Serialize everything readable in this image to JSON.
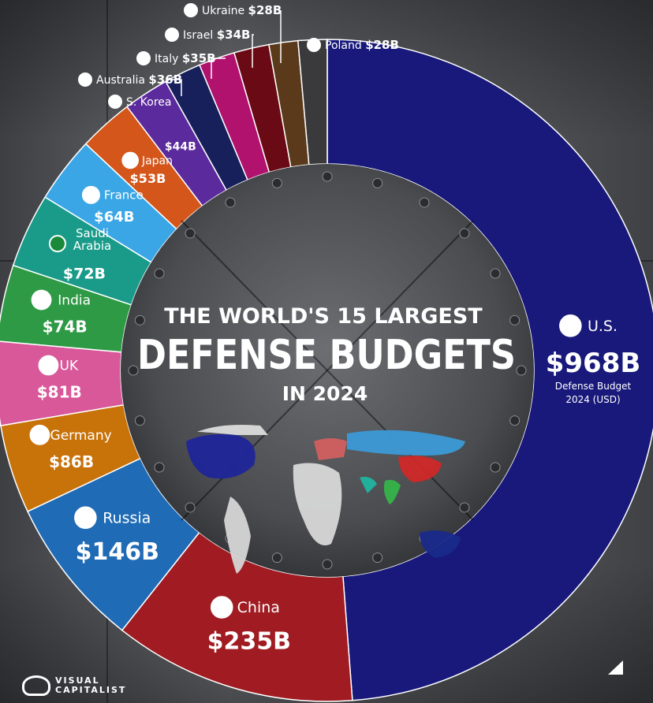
{
  "chart_data": {
    "type": "pie",
    "title": "THE WORLD'S 15 LARGEST",
    "subtitle": "DEFENSE BUDGETS",
    "subtitle2": "IN 2024",
    "unit_note": "Defense Budget",
    "unit_note2": "2024 (USD)",
    "slices": [
      {
        "country": "U.S.",
        "label": "$968B",
        "value": 968,
        "color": "#18197a"
      },
      {
        "country": "China",
        "label": "$235B",
        "value": 235,
        "color": "#a01c22"
      },
      {
        "country": "Russia",
        "label": "$146B",
        "value": 146,
        "color": "#1f6bb5"
      },
      {
        "country": "Germany",
        "label": "$86B",
        "value": 86,
        "color": "#c8720a"
      },
      {
        "country": "UK",
        "label": "$81B",
        "value": 81,
        "color": "#d8589a"
      },
      {
        "country": "India",
        "label": "$74B",
        "value": 74,
        "color": "#2f9a45"
      },
      {
        "country": "Saudi Arabia",
        "label": "$72B",
        "value": 72,
        "color": "#1a9b8a"
      },
      {
        "country": "France",
        "label": "$64B",
        "value": 64,
        "color": "#3aa6e6"
      },
      {
        "country": "Japan",
        "label": "$53B",
        "value": 53,
        "color": "#d4561b"
      },
      {
        "country": "S. Korea",
        "label": "$44B",
        "value": 44,
        "color": "#5b2a9c"
      },
      {
        "country": "Australia",
        "label": "$36B",
        "value": 36,
        "color": "#17205a"
      },
      {
        "country": "Italy",
        "label": "$35B",
        "value": 35,
        "color": "#b0126e"
      },
      {
        "country": "Israel",
        "label": "$34B",
        "value": 34,
        "color": "#6a0a14"
      },
      {
        "country": "Ukraine",
        "label": "$28B",
        "value": 28,
        "color": "#5a3a1a"
      },
      {
        "country": "Poland",
        "label": "$28B",
        "value": 28,
        "color": "#3a3a3c"
      }
    ]
  },
  "brand": {
    "line1": "VISUAL",
    "line2": "CAPITALIST"
  }
}
